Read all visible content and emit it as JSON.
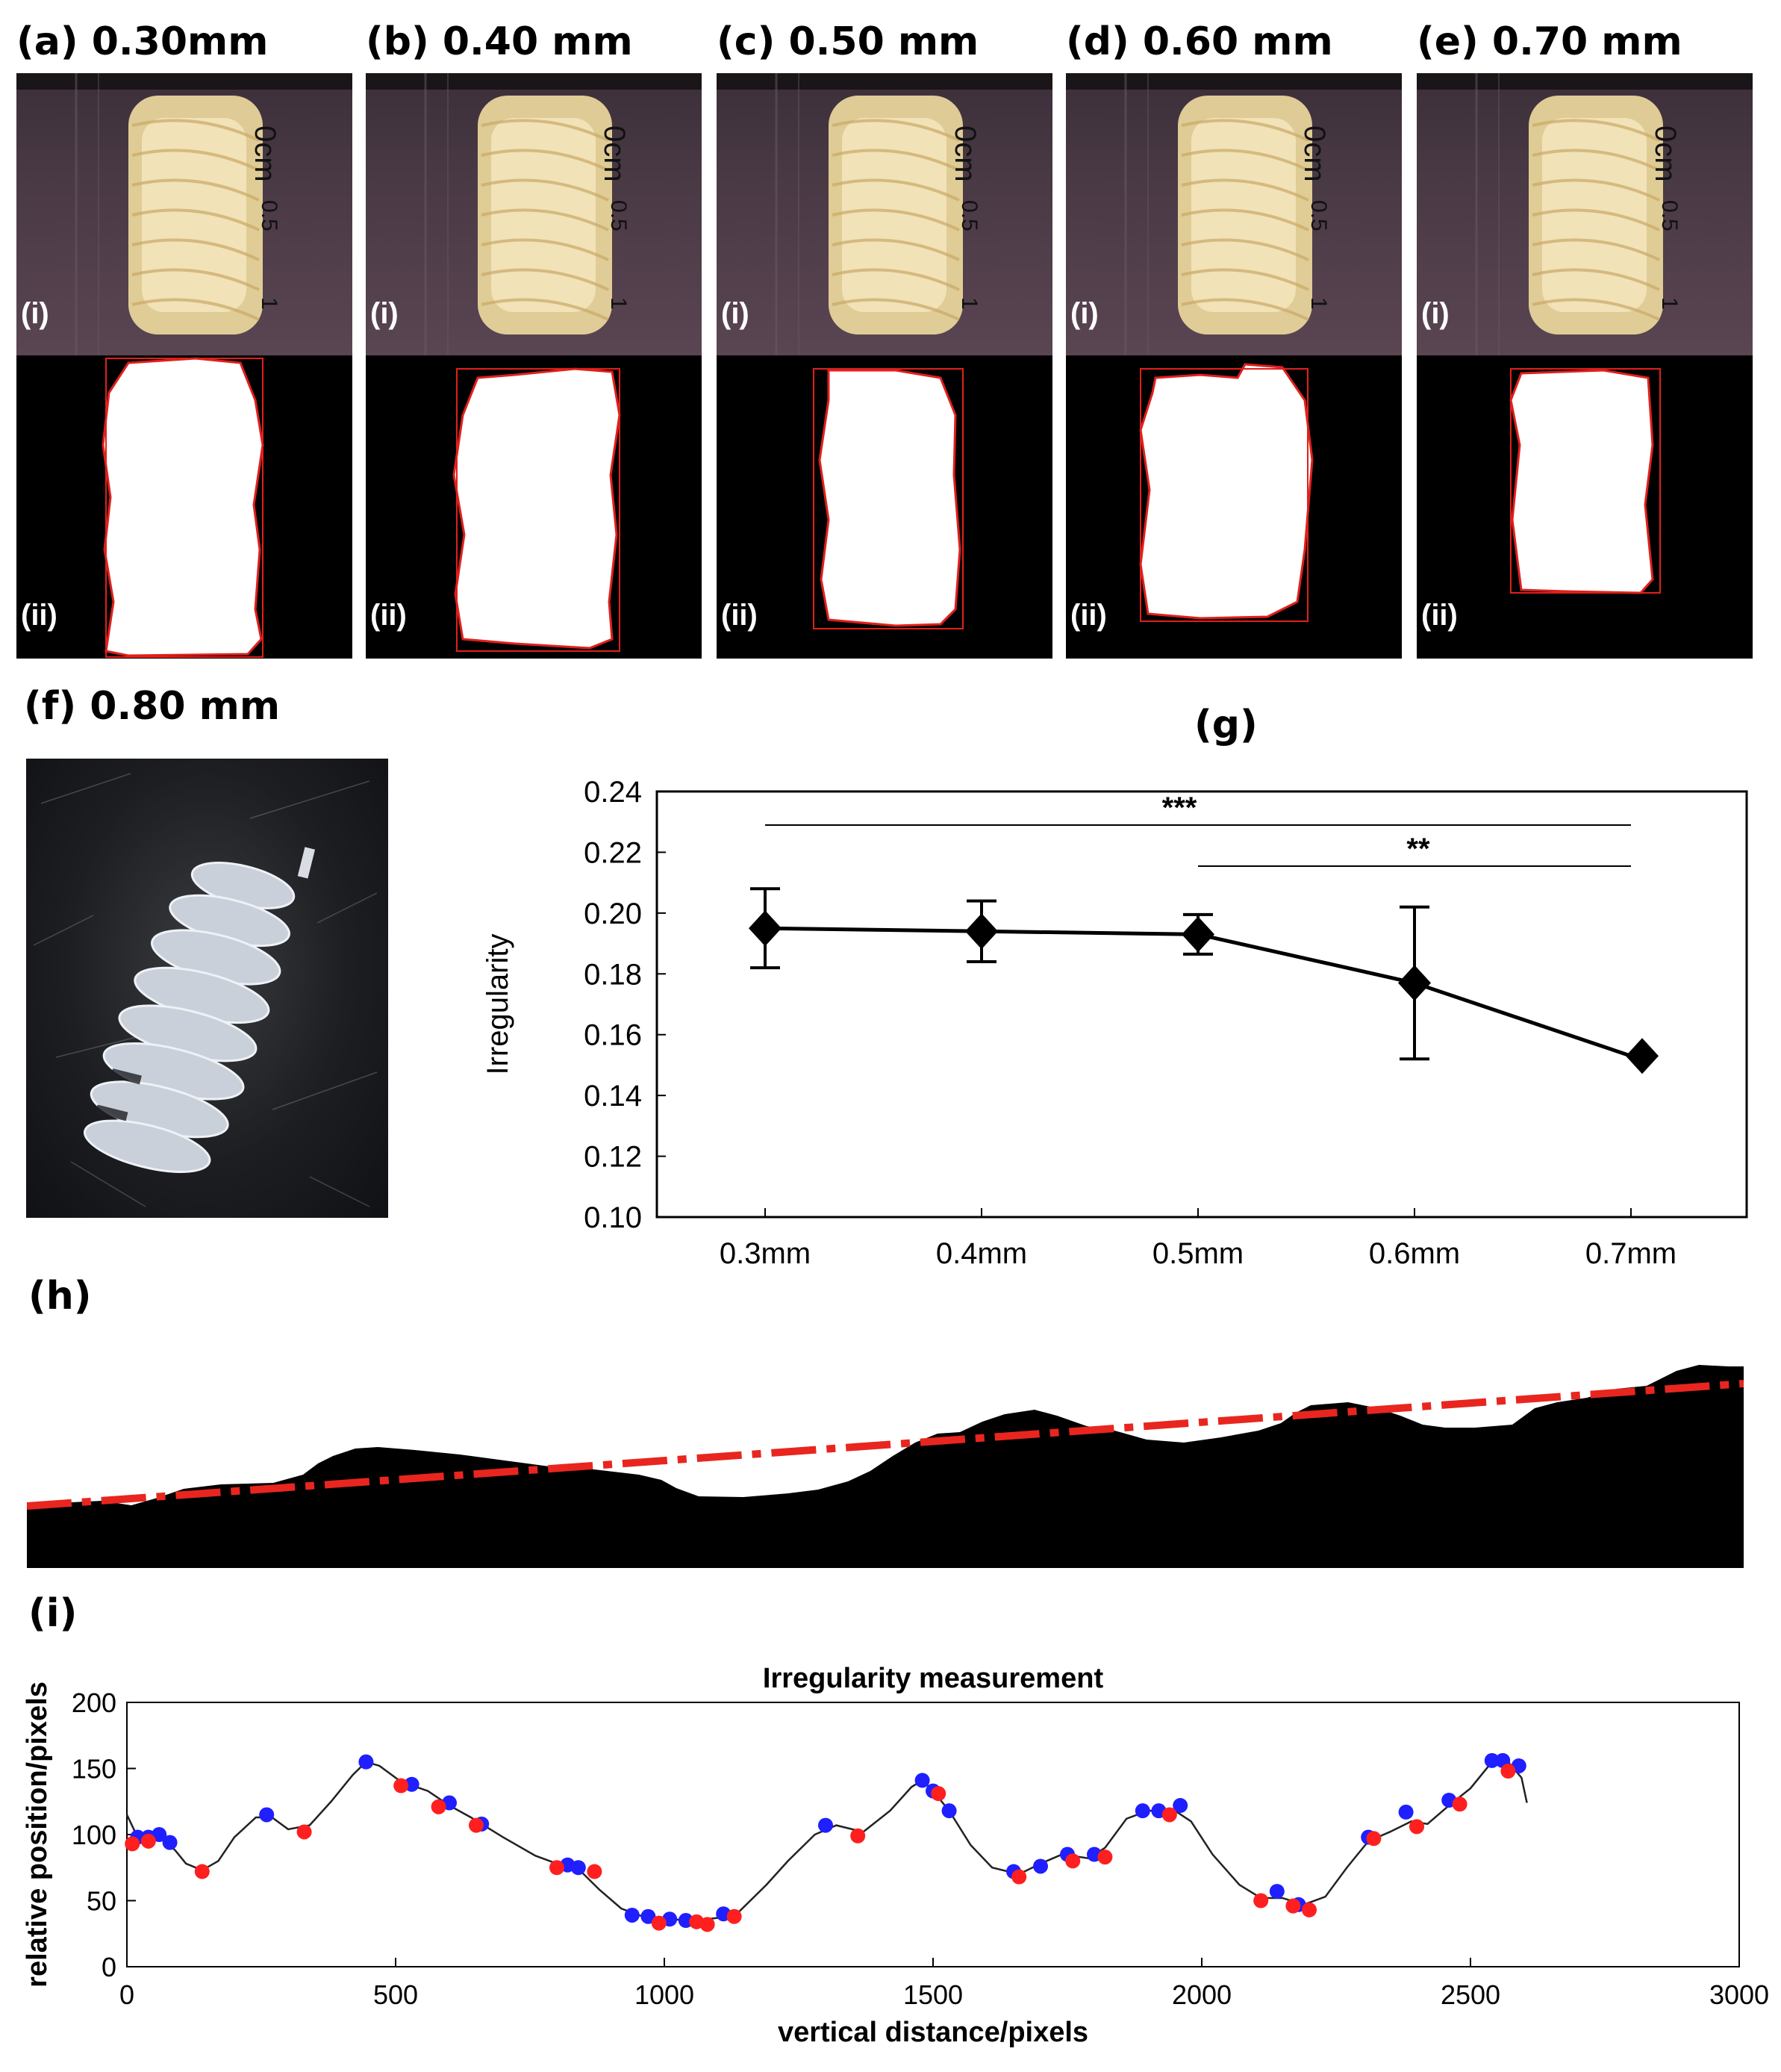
{
  "panels": [
    {
      "tag": "(a)",
      "size": "0.30mm",
      "sub_top": "(i)",
      "sub_bottom": "(ii)"
    },
    {
      "tag": "(b)",
      "size": "0.40 mm",
      "sub_top": "(i)",
      "sub_bottom": "(ii)"
    },
    {
      "tag": "(c)",
      "size": "0.50 mm",
      "sub_top": "(i)",
      "sub_bottom": "(ii)"
    },
    {
      "tag": "(d)",
      "size": "0.60 mm",
      "sub_top": "(i)",
      "sub_bottom": "(ii)"
    },
    {
      "tag": "(e)",
      "size": "0.70 mm",
      "sub_top": "(i)",
      "sub_bottom": "(ii)"
    }
  ],
  "ruler": {
    "zero": "0cm",
    "half": "0.5",
    "one": "1"
  },
  "panel_f": {
    "tag": "(f)",
    "size": "0.80 mm"
  },
  "panel_g_tag": "(g)",
  "panel_h_tag": "(h)",
  "panel_i_tag": "(i)",
  "colors": {
    "outline": "#e0201c",
    "trend": "#e8261f",
    "blue_points": "#1f1fff",
    "red_points": "#ff1f1f"
  },
  "chart_data": [
    {
      "type": "line",
      "title": "",
      "xlabel": "",
      "ylabel": "Irregularity",
      "categories": [
        "0.3mm",
        "0.4mm",
        "0.5mm",
        "0.6mm",
        "0.7mm"
      ],
      "values": [
        0.195,
        0.194,
        0.193,
        0.177,
        0.153
      ],
      "errors": [
        0.013,
        0.01,
        0.0065,
        0.025,
        0.0
      ],
      "ylim": [
        0.1,
        0.24
      ],
      "yticks": [
        "0.10",
        "0.12",
        "0.14",
        "0.16",
        "0.18",
        "0.20",
        "0.22",
        "0.24"
      ],
      "significance": [
        {
          "from": "0.3mm",
          "to": "0.7mm",
          "label": "***"
        },
        {
          "from": "0.5mm",
          "to": "0.7mm",
          "label": "**"
        }
      ],
      "grid": false,
      "marker": "diamond"
    },
    {
      "type": "line",
      "title": "Irregularity measurement",
      "xlabel": "vertical distance/pixels",
      "ylabel": "relative position/pixels",
      "xlim": [
        0,
        3000
      ],
      "ylim": [
        0,
        200
      ],
      "xticks": [
        "0",
        "500",
        "1000",
        "1500",
        "2000",
        "2500",
        "3000"
      ],
      "yticks": [
        "0",
        "50",
        "100",
        "150",
        "200"
      ],
      "profile": [
        [
          0,
          115
        ],
        [
          20,
          98
        ],
        [
          60,
          99
        ],
        [
          90,
          88
        ],
        [
          110,
          78
        ],
        [
          140,
          73
        ],
        [
          170,
          80
        ],
        [
          200,
          98
        ],
        [
          240,
          113
        ],
        [
          270,
          113
        ],
        [
          300,
          104
        ],
        [
          340,
          107
        ],
        [
          380,
          125
        ],
        [
          420,
          145
        ],
        [
          445,
          155
        ],
        [
          470,
          152
        ],
        [
          510,
          140
        ],
        [
          560,
          133
        ],
        [
          600,
          122
        ],
        [
          640,
          113
        ],
        [
          700,
          98
        ],
        [
          760,
          84
        ],
        [
          800,
          78
        ],
        [
          840,
          74
        ],
        [
          880,
          58
        ],
        [
          920,
          44
        ],
        [
          960,
          38
        ],
        [
          1000,
          36
        ],
        [
          1060,
          35
        ],
        [
          1100,
          37
        ],
        [
          1140,
          42
        ],
        [
          1190,
          62
        ],
        [
          1230,
          80
        ],
        [
          1280,
          100
        ],
        [
          1320,
          107
        ],
        [
          1370,
          102
        ],
        [
          1420,
          118
        ],
        [
          1460,
          136
        ],
        [
          1480,
          141
        ],
        [
          1500,
          133
        ],
        [
          1530,
          118
        ],
        [
          1570,
          92
        ],
        [
          1610,
          75
        ],
        [
          1660,
          70
        ],
        [
          1700,
          78
        ],
        [
          1740,
          85
        ],
        [
          1790,
          82
        ],
        [
          1820,
          90
        ],
        [
          1860,
          112
        ],
        [
          1900,
          118
        ],
        [
          1950,
          118
        ],
        [
          1980,
          110
        ],
        [
          2020,
          85
        ],
        [
          2070,
          62
        ],
        [
          2110,
          52
        ],
        [
          2150,
          52
        ],
        [
          2190,
          47
        ],
        [
          2230,
          53
        ],
        [
          2270,
          75
        ],
        [
          2310,
          95
        ],
        [
          2350,
          102
        ],
        [
          2390,
          110
        ],
        [
          2420,
          108
        ],
        [
          2460,
          122
        ],
        [
          2500,
          135
        ],
        [
          2540,
          155
        ],
        [
          2570,
          155
        ],
        [
          2595,
          143
        ],
        [
          2605,
          124
        ]
      ],
      "series": [
        {
          "name": "",
          "color": "blue",
          "x": [
            20,
            40,
            60,
            80,
            260,
            445,
            530,
            600,
            660,
            820,
            840,
            940,
            970,
            1010,
            1040,
            1110,
            1300,
            1480,
            1500,
            1530,
            1650,
            1700,
            1750,
            1800,
            1890,
            1920,
            1960,
            2140,
            2180,
            2310,
            2380,
            2460,
            2540,
            2560,
            2590
          ],
          "y": [
            98,
            98,
            100,
            94,
            115,
            155,
            138,
            124,
            108,
            77,
            75,
            39,
            38,
            36,
            35,
            40,
            107,
            141,
            133,
            118,
            72,
            76,
            85,
            85,
            118,
            118,
            122,
            57,
            47,
            98,
            117,
            126,
            156,
            156,
            152
          ]
        },
        {
          "name": "",
          "color": "red",
          "x": [
            10,
            40,
            140,
            330,
            510,
            580,
            650,
            800,
            870,
            990,
            1060,
            1080,
            1130,
            1360,
            1510,
            1660,
            1760,
            1820,
            1940,
            2110,
            2170,
            2200,
            2320,
            2400,
            2480,
            2570
          ],
          "y": [
            93,
            95,
            72,
            102,
            137,
            121,
            107,
            75,
            72,
            33,
            34,
            32,
            38,
            99,
            131,
            68,
            80,
            83,
            115,
            50,
            46,
            43,
            97,
            106,
            123,
            148
          ]
        }
      ]
    }
  ]
}
